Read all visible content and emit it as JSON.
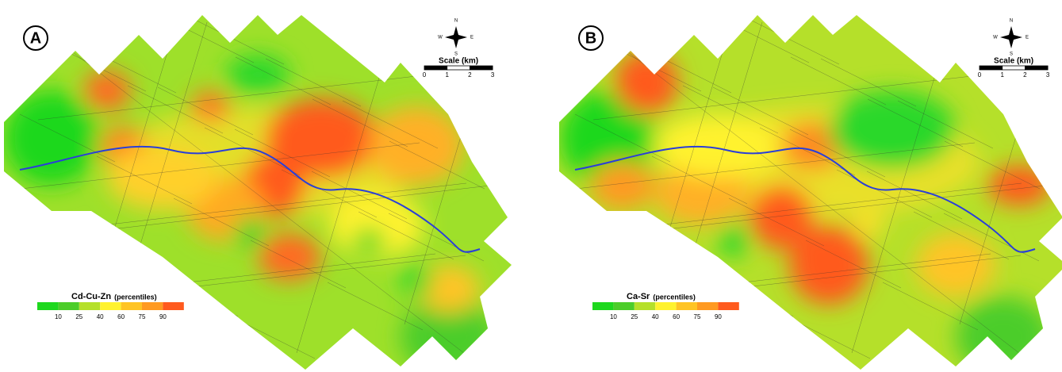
{
  "panels": [
    {
      "label": "A",
      "legend": {
        "title": "Cd-Cu-Zn",
        "subtitle": "(percentiles)",
        "ticks": [
          10,
          25,
          40,
          60,
          75,
          90
        ],
        "colors": [
          "#1ed81e",
          "#4ccd2a",
          "#b5e02a",
          "#fff22e",
          "#ffc425",
          "#ff9a22",
          "#ff5a1e"
        ]
      },
      "scale": {
        "title": "Scale (km)",
        "ticks": [
          0,
          1,
          2,
          3
        ]
      },
      "compass": {
        "n": "N",
        "s": "S",
        "e": "E",
        "w": "W"
      }
    },
    {
      "label": "B",
      "legend": {
        "title": "Ca-Sr",
        "subtitle": "(percentiles)",
        "ticks": [
          10,
          25,
          40,
          60,
          75,
          90
        ],
        "colors": [
          "#1ed81e",
          "#4ccd2a",
          "#b5e02a",
          "#fff22e",
          "#ffc425",
          "#ff9a22",
          "#ff5a1e"
        ]
      },
      "scale": {
        "title": "Scale (km)",
        "ticks": [
          0,
          1,
          2,
          3
        ]
      },
      "compass": {
        "n": "N",
        "s": "S",
        "e": "E",
        "w": "W"
      }
    }
  ]
}
